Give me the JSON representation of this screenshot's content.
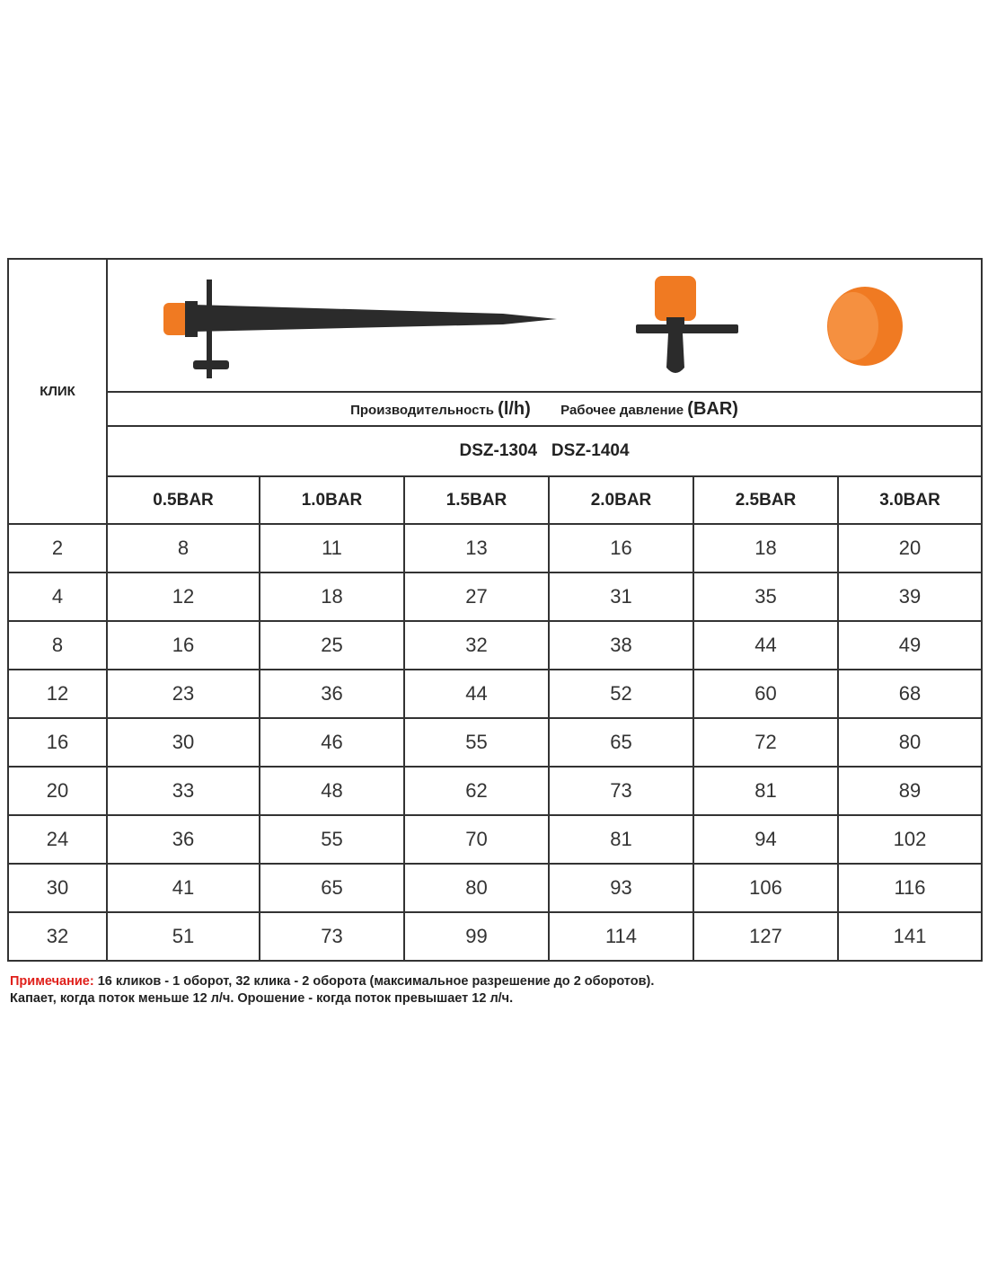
{
  "table": {
    "row_header_label": "КЛИК",
    "performance_label": "Производительность",
    "performance_unit": "(l/h)",
    "pressure_label": "Рабочее давление",
    "pressure_unit": "(BAR)",
    "models": "DSZ-1304   DSZ-1404",
    "columns": [
      "0.5BAR",
      "1.0BAR",
      "1.5BAR",
      "2.0BAR",
      "2.5BAR",
      "3.0BAR"
    ],
    "rows": [
      {
        "click": "2",
        "values": [
          "8",
          "11",
          "13",
          "16",
          "18",
          "20"
        ]
      },
      {
        "click": "4",
        "values": [
          "12",
          "18",
          "27",
          "31",
          "35",
          "39"
        ]
      },
      {
        "click": "8",
        "values": [
          "16",
          "25",
          "32",
          "38",
          "44",
          "49"
        ]
      },
      {
        "click": "12",
        "values": [
          "23",
          "36",
          "44",
          "52",
          "60",
          "68"
        ]
      },
      {
        "click": "16",
        "values": [
          "30",
          "46",
          "55",
          "65",
          "72",
          "80"
        ]
      },
      {
        "click": "20",
        "values": [
          "33",
          "48",
          "62",
          "73",
          "81",
          "89"
        ]
      },
      {
        "click": "24",
        "values": [
          "36",
          "55",
          "70",
          "81",
          "94",
          "102"
        ]
      },
      {
        "click": "30",
        "values": [
          "41",
          "65",
          "80",
          "93",
          "106",
          "116"
        ]
      },
      {
        "click": "32",
        "values": [
          "51",
          "73",
          "99",
          "114",
          "127",
          "141"
        ]
      }
    ]
  },
  "note": {
    "prefix": "Примечание:",
    "line1": " 16 кликов - 1 оборот, 32 клика - 2 оборота (максимальное разрешение до 2 оборотов).",
    "line2": "Капает, когда поток меньше 12 л/ч. Орошение - когда поток превышает 12 л/ч."
  },
  "colors": {
    "accent_orange": "#f07a22",
    "note_red": "#e0201b"
  }
}
